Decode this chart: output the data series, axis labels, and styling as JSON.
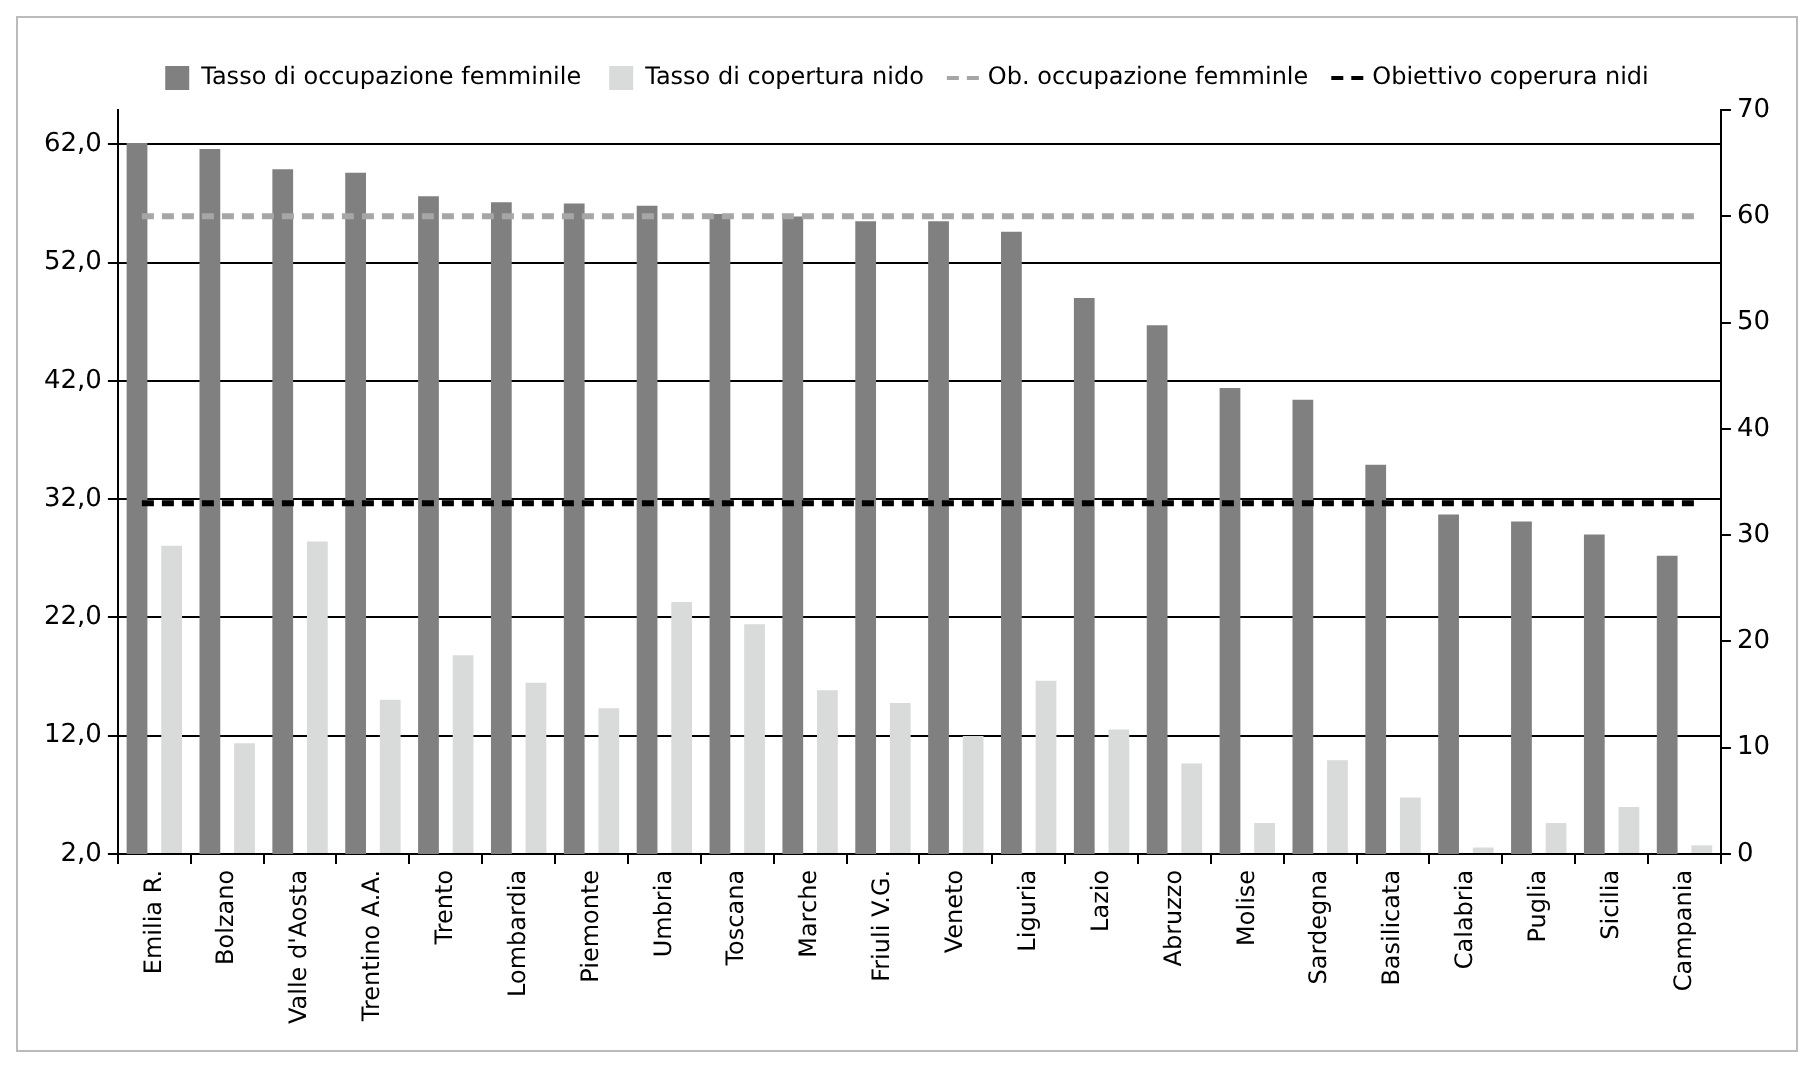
{
  "chart_data": {
    "type": "bar",
    "categories": [
      "Emilia R.",
      "Bolzano",
      "Valle d'Aosta",
      "Trentino A.A.",
      "Trento",
      "Lombardia",
      "Piemonte",
      "Umbria",
      "Toscana",
      "Marche",
      "Friuli V.G.",
      "Veneto",
      "Liguria",
      "Lazio",
      "Abruzzo",
      "Molise",
      "Sardegna",
      "Basilicata",
      "Calabria",
      "Puglia",
      "Sicilia",
      "Campania"
    ],
    "series": [
      {
        "name": "Tasso di occupazione femminile",
        "color": "#808080",
        "values": [
          62.1,
          61.6,
          59.9,
          59.6,
          57.6,
          57.1,
          57.0,
          56.8,
          56.1,
          55.9,
          55.5,
          55.5,
          54.6,
          49.0,
          46.7,
          41.4,
          40.4,
          34.9,
          30.7,
          30.1,
          29.0,
          27.2
        ]
      },
      {
        "name": "Tasso di copertura nido",
        "color": "#d9dada",
        "axis": "y2",
        "values": [
          29.0,
          10.4,
          29.4,
          14.5,
          18.7,
          16.1,
          13.7,
          23.7,
          21.6,
          15.4,
          14.2,
          11.1,
          16.3,
          11.7,
          8.5,
          2.9,
          8.8,
          5.3,
          0.6,
          2.9,
          4.4,
          0.8
        ]
      }
    ],
    "ylim": [
      2,
      64.9
    ],
    "yticks": [
      {
        "value": 2,
        "label": "2,0"
      },
      {
        "value": 12,
        "label": "12,0"
      },
      {
        "value": 22,
        "label": "22,0"
      },
      {
        "value": 32,
        "label": "32,0"
      },
      {
        "value": 42,
        "label": "42,0"
      },
      {
        "value": 52,
        "label": "52,0"
      },
      {
        "value": 62,
        "label": "62,0"
      }
    ],
    "y2lim": [
      0,
      70
    ],
    "y2ticks": [
      0,
      10,
      20,
      30,
      40,
      50,
      60,
      70
    ],
    "ref_lines": [
      {
        "axis": "y2",
        "value": 60,
        "label": "Ob. occupazione femminle",
        "color": "#a6a6a6",
        "line_style": "dashed"
      },
      {
        "axis": "y2",
        "value": 33,
        "label": "Obiettivo coperura nidi",
        "color": "#000000",
        "line_style": "dashed"
      }
    ],
    "grid": "y",
    "legend": "top"
  }
}
